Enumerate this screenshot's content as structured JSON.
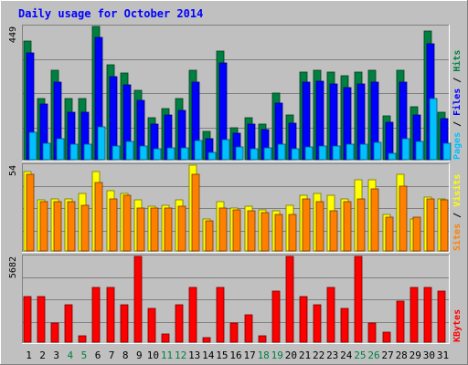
{
  "chart_data": {
    "type": "bar",
    "title": "Daily usage for October 2014",
    "categories": [
      "1",
      "2",
      "3",
      "4",
      "5",
      "6",
      "7",
      "8",
      "9",
      "10",
      "11",
      "12",
      "13",
      "14",
      "15",
      "16",
      "17",
      "18",
      "19",
      "20",
      "21",
      "22",
      "23",
      "24",
      "25",
      "26",
      "27",
      "28",
      "29",
      "30",
      "31"
    ],
    "weekend_days": [
      "4",
      "5",
      "11",
      "12",
      "18",
      "19",
      "25",
      "26"
    ],
    "colors": {
      "title": "#0000ff",
      "hits": "#008040",
      "files": "#0000ff",
      "pages": "#00c0ff",
      "visits": "#ffff00",
      "sites": "#ff8000",
      "kbytes": "#ff0000",
      "weekend_label": "#008040",
      "weekday_label": "#000000",
      "background": "#c0c0c0"
    },
    "panels": [
      {
        "id": "hits-files-pages",
        "max_label": "449",
        "ymax": 449,
        "legend": [
          {
            "text": "Pages",
            "color": "#00c0ff"
          },
          {
            "text": " / ",
            "color": "#000000"
          },
          {
            "text": "Files",
            "color": "#0000ff"
          },
          {
            "text": " / ",
            "color": "#000000"
          },
          {
            "text": "Hits",
            "color": "#008040"
          }
        ],
        "series": [
          {
            "name": "Hits",
            "color": "#008040",
            "values": [
              400,
              206,
              302,
              205,
              205,
              449,
              320,
              293,
              233,
              140,
              173,
              205,
              302,
              95,
              365,
              107,
              140,
              119,
              224,
              150,
              295,
              301,
              295,
              283,
              294,
              301,
              149,
              302,
              179,
              435,
              160
            ]
          },
          {
            "name": "Files",
            "color": "#0000ff",
            "values": [
              359,
              187,
              262,
              160,
              160,
              412,
              281,
              251,
              199,
              119,
              151,
              165,
              262,
              70,
              326,
              88,
              119,
              102,
              190,
              123,
              260,
              265,
              256,
              243,
              255,
              261,
              126,
              261,
              152,
              391,
              137
            ]
          },
          {
            "name": "Pages",
            "color": "#00c0ff",
            "values": [
              91,
              54,
              72,
              53,
              53,
              110,
              47,
              63,
              47,
              36,
              40,
              39,
              65,
              25,
              68,
              44,
              38,
              39,
              52,
              38,
              44,
              47,
              47,
              53,
              53,
              59,
              22,
              70,
              61,
              205,
              56
            ]
          }
        ]
      },
      {
        "id": "visits-sites",
        "max_label": "54",
        "ymax": 54,
        "legend": [
          {
            "text": "Sites",
            "color": "#ff8000"
          },
          {
            "text": " / ",
            "color": "#000000"
          },
          {
            "text": "Visits",
            "color": "#ffff00"
          }
        ],
        "series": [
          {
            "name": "Visits",
            "color": "#ffff00",
            "values": [
              50,
              32,
              33,
              33,
              36,
              50,
              38,
              36,
              32,
              28,
              29,
              32,
              54,
              20,
              31,
              27,
              28,
              26,
              25,
              29,
              35,
              36,
              35,
              33,
              45,
              45,
              23,
              48,
              20,
              34,
              33
            ]
          },
          {
            "name": "Sites",
            "color": "#ff8000",
            "values": [
              48,
              31,
              31,
              31,
              29,
              43,
              33,
              35,
              27,
              27,
              27,
              28,
              48,
              19,
              27,
              26,
              25,
              24,
              23,
              23,
              33,
              31,
              25,
              31,
              33,
              39,
              21,
              41,
              21,
              33,
              32
            ]
          }
        ]
      },
      {
        "id": "kbytes",
        "max_label": "5682",
        "ymax": 5682,
        "legend": [
          {
            "text": "KBytes",
            "color": "#ff0000"
          }
        ],
        "series": [
          {
            "name": "KBytes",
            "color": "#ff0000",
            "values": [
              3040,
              3040,
              1240,
              2480,
              450,
              3600,
              3600,
              2480,
              5682,
              2260,
              560,
              2480,
              3600,
              280,
              3600,
              1240,
              1800,
              450,
              3380,
              5682,
              3040,
              2480,
              3600,
              2260,
              5682,
              1240,
              670,
              2700,
              3600,
              3600,
              3380
            ]
          }
        ]
      }
    ]
  }
}
